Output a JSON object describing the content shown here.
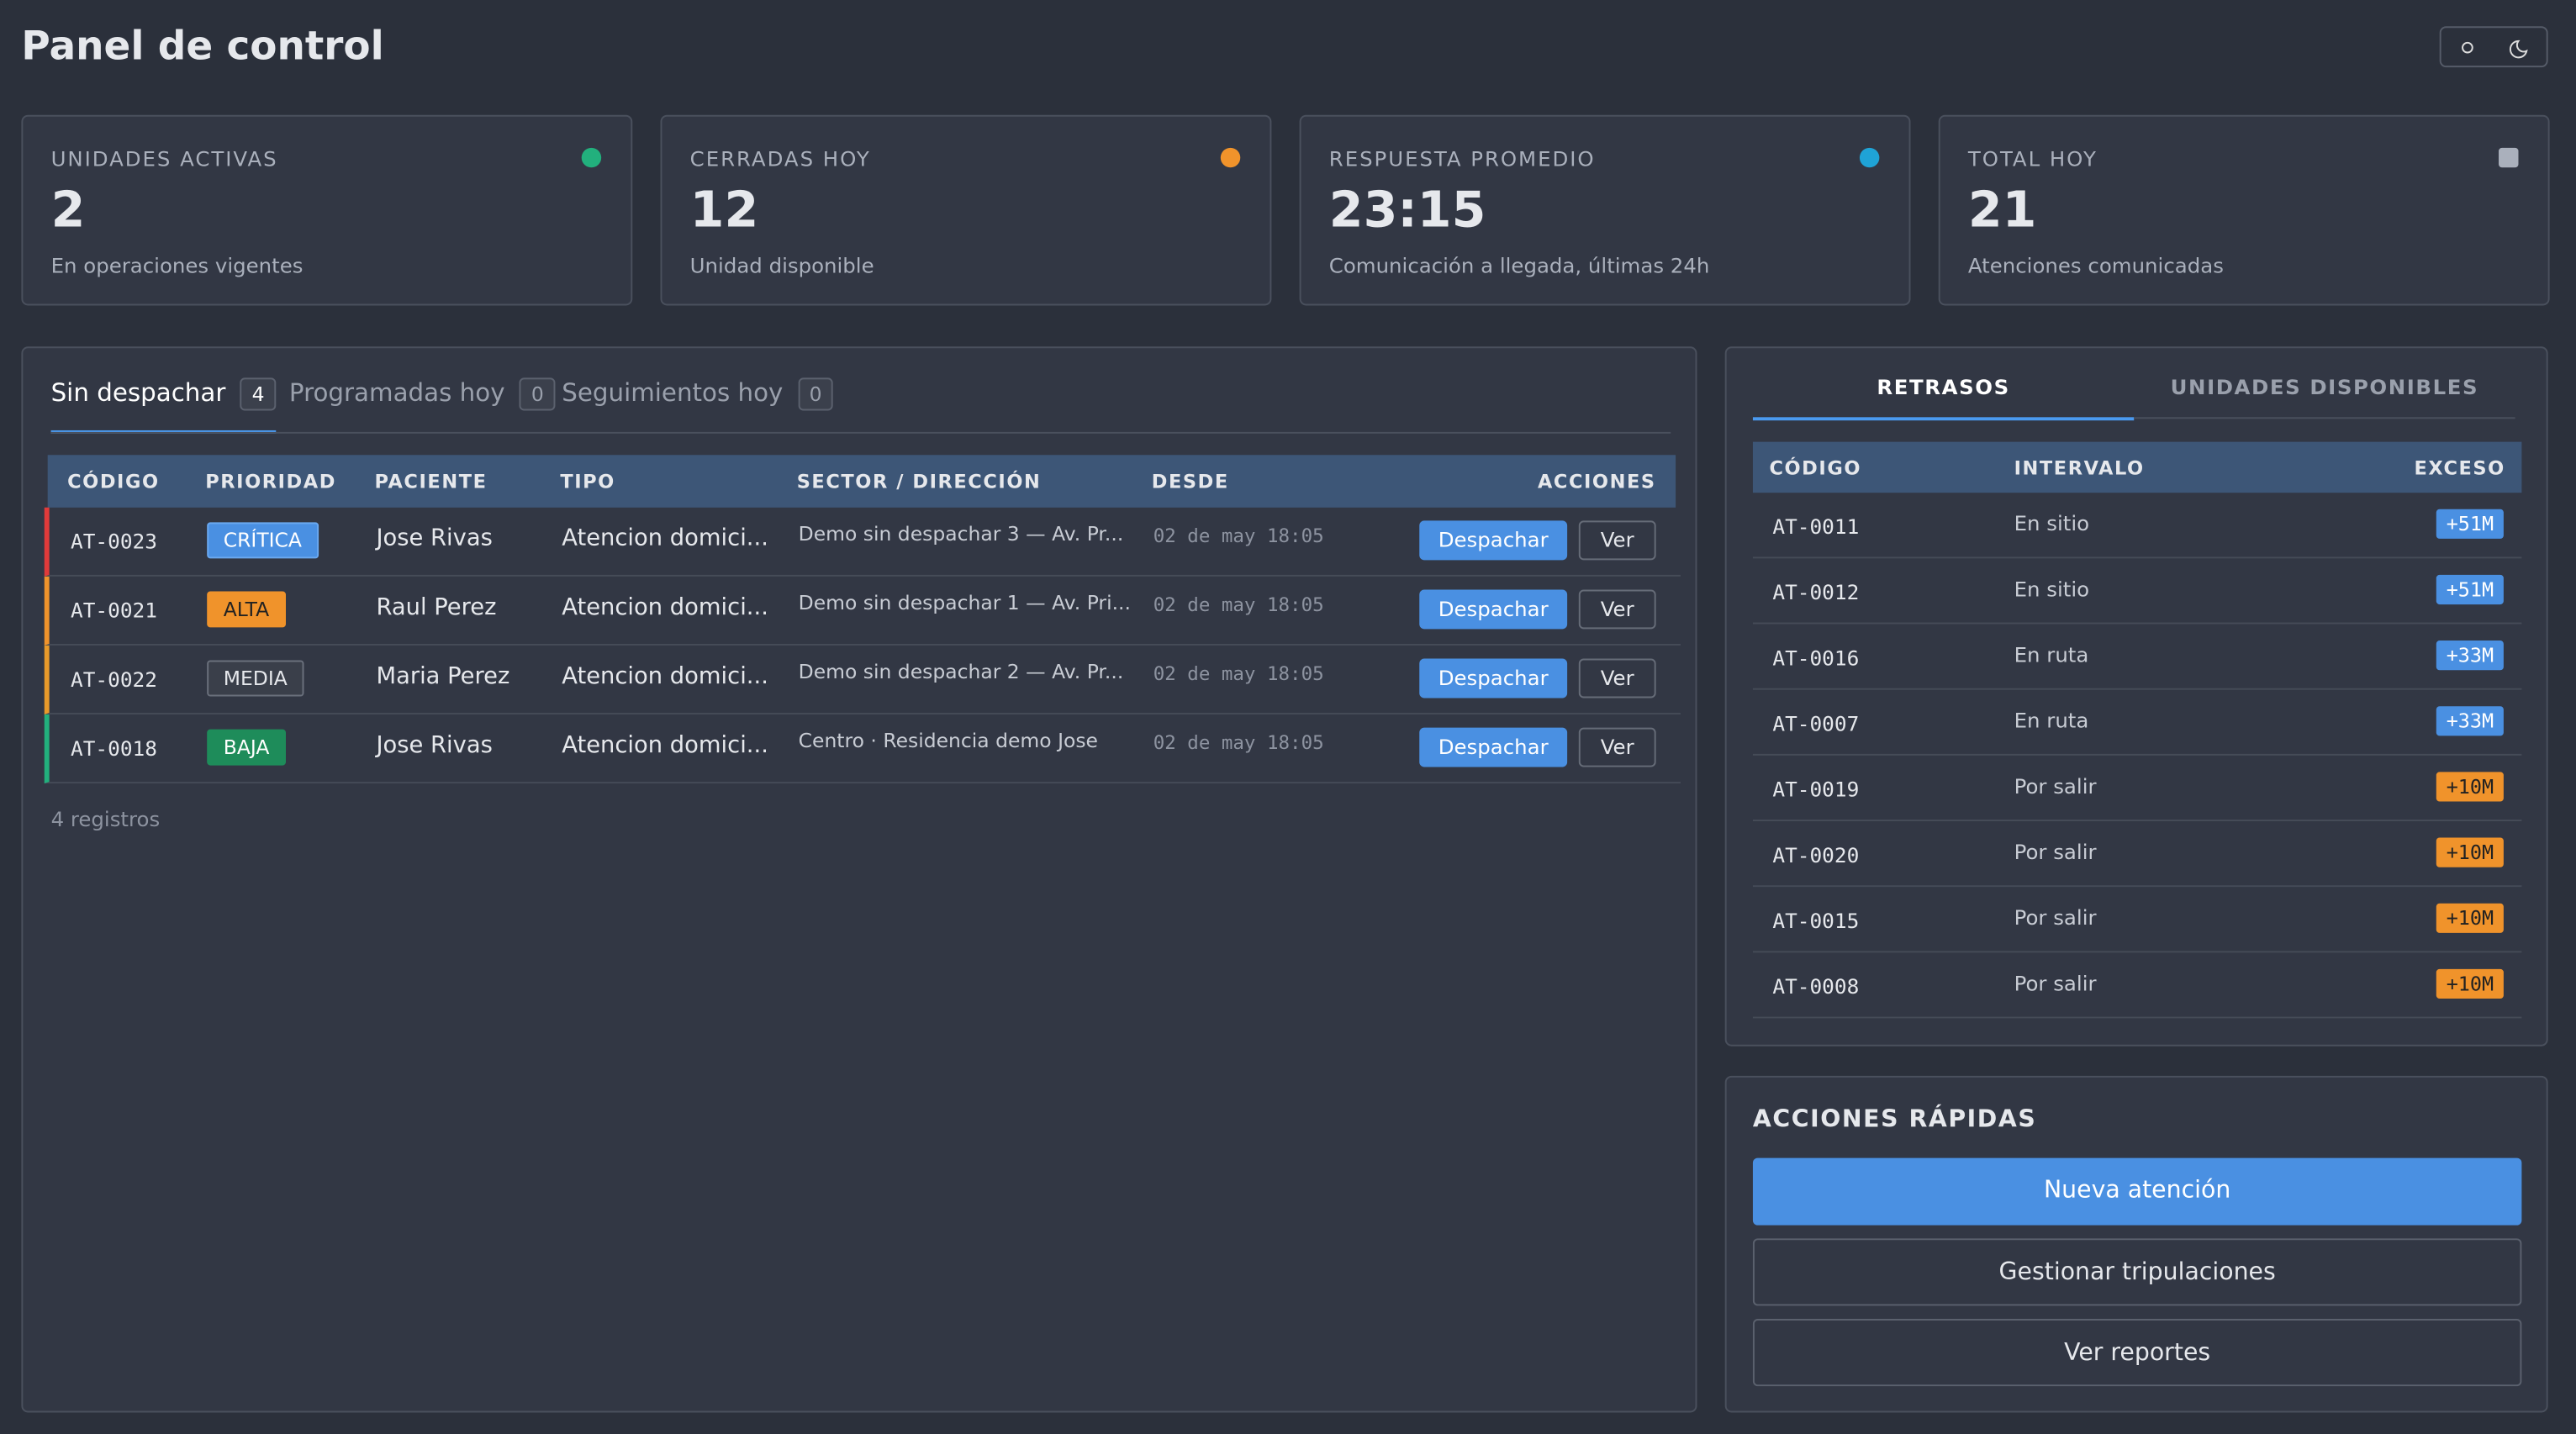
{
  "header": {
    "title": "Panel de control"
  },
  "stats": [
    {
      "label": "UNIDADES ACTIVAS",
      "value": "2",
      "note": "En operaciones vigentes",
      "color": "#22b07d"
    },
    {
      "label": "CERRADAS HOY",
      "value": "12",
      "note": "Unidad disponible",
      "color": "#f0932b"
    },
    {
      "label": "RESPUESTA PROMEDIO",
      "value": "23:15",
      "note": "Comunicación a llegada, últimas 24h",
      "color": "#1fa3d6"
    },
    {
      "label": "TOTAL HOY",
      "value": "21",
      "note": "Atenciones comunicadas",
      "color": "#aab0bc"
    }
  ],
  "tabs": [
    {
      "label": "Sin despachar",
      "count": "4"
    },
    {
      "label": "Programadas hoy",
      "count": "0"
    },
    {
      "label": "Seguimientos hoy",
      "count": "0"
    }
  ],
  "table": {
    "columns": [
      "CÓDIGO",
      "PRIORIDAD",
      "PACIENTE",
      "TIPO",
      "SECTOR / DIRECCIÓN",
      "DESDE",
      "ACCIONES"
    ],
    "rows": [
      {
        "code": "AT-0023",
        "priority": "CRÍTICA",
        "patient": "Jose Rivas",
        "type": "Atencion domici...",
        "address": "Demo sin despachar 3 — Av. Pr...",
        "since": "02 de may 18:05"
      },
      {
        "code": "AT-0021",
        "priority": "ALTA",
        "patient": "Raul Perez",
        "type": "Atencion domici...",
        "address": "Demo sin despachar 1 — Av. Pri...",
        "since": "02 de may 18:05"
      },
      {
        "code": "AT-0022",
        "priority": "MEDIA",
        "patient": "Maria Perez",
        "type": "Atencion domici...",
        "address": "Demo sin despachar 2 — Av. Pr...",
        "since": "02 de may 18:05"
      },
      {
        "code": "AT-0018",
        "priority": "BAJA",
        "patient": "Jose Rivas",
        "type": "Atencion domici...",
        "address": "Centro · Residencia demo Jose",
        "since": "02 de may 18:05"
      }
    ],
    "actions": {
      "dispatch": "Despachar",
      "view": "Ver"
    },
    "footer": "4 registros"
  },
  "delays": {
    "tabs": [
      "RETRASOS",
      "UNIDADES DISPONIBLES"
    ],
    "columns": [
      "CÓDIGO",
      "INTERVALO",
      "EXCESO"
    ],
    "rows": [
      {
        "code": "AT-0011",
        "interval": "En sitio",
        "excess": "+51M"
      },
      {
        "code": "AT-0012",
        "interval": "En sitio",
        "excess": "+51M"
      },
      {
        "code": "AT-0016",
        "interval": "En ruta",
        "excess": "+33M"
      },
      {
        "code": "AT-0007",
        "interval": "En ruta",
        "excess": "+33M"
      },
      {
        "code": "AT-0019",
        "interval": "Por salir",
        "excess": "+10M"
      },
      {
        "code": "AT-0020",
        "interval": "Por salir",
        "excess": "+10M"
      },
      {
        "code": "AT-0015",
        "interval": "Por salir",
        "excess": "+10M"
      },
      {
        "code": "AT-0008",
        "interval": "Por salir",
        "excess": "+10M"
      }
    ]
  },
  "quick_actions": {
    "title": "ACCIONES RÁPIDAS",
    "buttons": [
      "Nueva atención",
      "Gestionar tripulaciones",
      "Ver reportes"
    ]
  }
}
